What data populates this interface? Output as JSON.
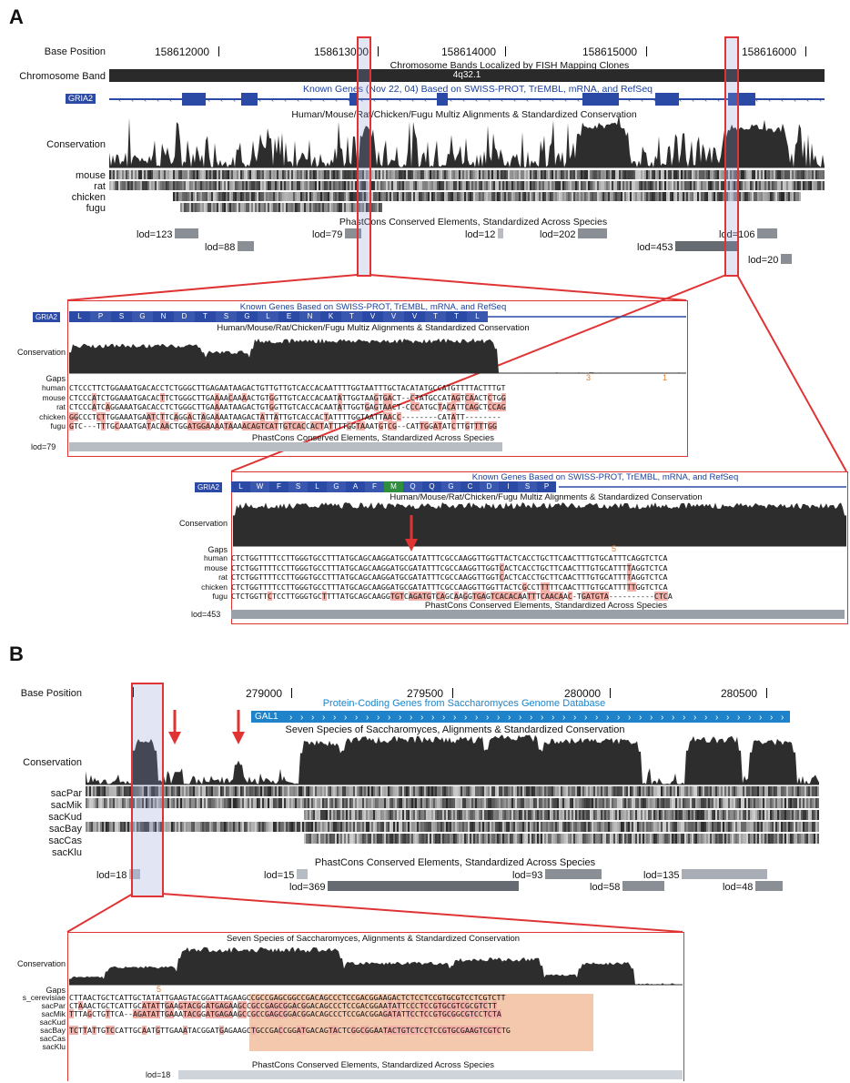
{
  "panel_a": {
    "letter": "A",
    "base_position_label": "Base Position",
    "positions": [
      "158612000",
      "158613000",
      "158614000",
      "158615000",
      "158616000"
    ],
    "chromosome_band_label": "Chromosome Band",
    "chromosome_band_title": "Chromosome Bands Localized by FISH Mapping Clones",
    "band_name": "4q32.1",
    "gene_name": "GRIA2",
    "known_genes_title": "Known Genes (Nov 22, 04) Based on SWISS-PROT, TrEMBL, mRNA, and RefSeq",
    "multiz_title": "Human/Mouse/Rat/Chicken/Fugu Multiz Alignments & Standardized Conservation",
    "conservation_label": "Conservation",
    "species": [
      "mouse",
      "rat",
      "chicken",
      "fugu"
    ],
    "phastcons_title": "PhastCons Conserved Elements, Standardized Across Species",
    "lods": [
      "lod=123",
      "lod=88",
      "lod=79",
      "lod=12",
      "lod=202",
      "lod=453",
      "lod=106",
      "lod=20"
    ]
  },
  "zoom1": {
    "gene_name": "GRIA2",
    "known_genes_title": "Known Genes Based on SWISS-PROT, TrEMBL, mRNA, and RefSeq",
    "aa": [
      "L",
      "P",
      "S",
      "G",
      "N",
      "D",
      "T",
      "S",
      "G",
      "L",
      "E",
      "N",
      "K",
      "T",
      "V",
      "V",
      "V",
      "T",
      "T",
      "L"
    ],
    "multiz_title": "Human/Mouse/Rat/Chicken/Fugu Multiz Alignments & Standardized Conservation",
    "conservation_label": "Conservation",
    "gaps_label": "Gaps",
    "gap_marks": [
      "3",
      "1"
    ],
    "rows": [
      {
        "name": "human",
        "seq": "CTCCCTTCTGGAAATGACACCTCTGGGCTTGAGAATAAGACTGTTGTTGTCACCACAATTTTGGTAATTTGCTACATATGCCATGTTTTACTTTGT"
      },
      {
        "name": "mouse",
        "seq": "CTCCCATCTGGAAATGACACTTCTGGGCTTGAAAACAAAACTGTGGTTGTCACCACAATATTGGTAAGTGACT--CTATGCCATAGTCAACTCTGG"
      },
      {
        "name": "rat",
        "seq": "CTCCCATCAGGAAATGACACCTCTGGGCTTGAAAATAAGACTGTGGTTGTCACCACAATATTGGTGAGTAACT-CCCATGCTACATTCAGCTCCAG"
      },
      {
        "name": "chicken",
        "seq": "GGCCCTCTTGGAAATGAATCTTCAGGACTAGAAAATAAGACTATTATTGTCACCACTATTTTGGTAATTAACC--------CATATT--------"
      },
      {
        "name": "fugu",
        "seq": "GTC---TTTGCAAATGATACAACTGGATGGAAAATAAAACAGTCATTGTCACCACTATTTTGGTAAATGTCG--CATTGGATATCTTGTTTTGG"
      }
    ],
    "phastcons_title": "PhastCons Conserved Elements, Standardized Across Species",
    "lod": "lod=79"
  },
  "zoom2": {
    "gene_name": "GRIA2",
    "known_genes_title": "Known Genes Based on SWISS-PROT, TrEMBL, mRNA, and RefSeq",
    "aa": [
      "L",
      "W",
      "F",
      "S",
      "L",
      "G",
      "A",
      "F",
      "M",
      "Q",
      "Q",
      "G",
      "C",
      "D",
      "I",
      "S",
      "P"
    ],
    "multiz_title": "Human/Mouse/Rat/Chicken/Fugu Multiz Alignments & Standardized Conservation",
    "conservation_label": "Conservation",
    "gaps_label": "Gaps",
    "gap_marks": [
      "5"
    ],
    "rows": [
      {
        "name": "human",
        "seq": "CTCTGGTTTTCCTTGGGTGCCTTTATGCAGCAAGGATGCGATATTTCGCCAAGGTTGGTTACTCACCTGCTTCAACTTTGTGCATTTCAGGTCTCA"
      },
      {
        "name": "mouse",
        "seq": "CTCTGGTTTTCCTTGGGTGCCTTTATGCAGCAAGGATGCGATATTTCGCCAAGGTTGGTCACTCACCTGCTTCAACTTTGTGCATTTTAGGTCTCA"
      },
      {
        "name": "rat",
        "seq": "CTCTGGTTTTCCTTGGGTGCCTTTATGCAGCAAGGATGCGATATTTCGCCAAGGTTGGTCACTCACCTGCTTCAACTTTGTGCATTTTAGGTCTCA"
      },
      {
        "name": "chicken",
        "seq": "CTCTGGTTTTCCTTGGGTGCCTTTATGCAGCAAGGATGCGATATTTCGCCAAGGTTGGTTACTCGCCTTTTTCAACTTTGTGCATTTTTGGTCTCA"
      },
      {
        "name": "fugu",
        "seq": "CTCTGGTTCTCCTTGGGTGCTTTTATGCAGCAAGGTGTCAGATGTCAGCAAGGTGAGTCACACAATTTCAACAAC-TGATGTA----------CTCA"
      }
    ],
    "phastcons_title": "PhastCons Conserved Elements, Standardized Across Species",
    "lod": "lod=453"
  },
  "panel_b": {
    "letter": "B",
    "base_position_label": "Base Position",
    "positions": [
      "279000",
      "279500",
      "280000",
      "280500"
    ],
    "gene_name": "GAL1",
    "gene_title": "Protein-Coding Genes from Saccharomyces Genome Database",
    "multiz_title": "Seven Species of Saccharomyces, Alignments & Standardized Conservation",
    "conservation_label": "Conservation",
    "species": [
      "sacPar",
      "sacMik",
      "sacKud",
      "sacBay",
      "sacCas",
      "sacKlu"
    ],
    "phastcons_title": "PhastCons Conserved Elements, Standardized Across Species",
    "lods": [
      "lod=18",
      "lod=15",
      "lod=369",
      "lod=93",
      "lod=58",
      "lod=135",
      "lod=48"
    ]
  },
  "zoom3": {
    "multiz_title": "Seven Species of Saccharomyces, Alignments & Standardized Conservation",
    "conservation_label": "Conservation",
    "gaps_label": "Gaps",
    "gap_marks": [
      "5"
    ],
    "rows": [
      {
        "name": "s_cerevisiae",
        "seq": "CTTAACTGCTCATTGCTATATTGAAGTACGGATTAGAAGCCGCCGAGCGGCCGACAGCCCTCCGACGGAAGACTCTCCTCCGTGCGTCCTCGTCTT"
      },
      {
        "name": "sacPar",
        "seq": "CTAAACTGCTCATTGCATATTGAAGTACGGATGAGAAGCCGCCGAGCGGACGGACAGCCCTCCGACGGAATATTCCCTCCGTGCGTCGCGTCTT"
      },
      {
        "name": "sacMik",
        "seq": "TTTAGCTGTTCA--AGATATTGAAATACGGATGAGAAGCCGCCGAGCGGACGGACAGCCCTCCGACGGAGATATTCCTCCGTGCGGCGTCCTCTA"
      },
      {
        "name": "sacKud",
        "seq": ""
      },
      {
        "name": "sacBay",
        "seq": "TCTTATTGTCCATTGCAATGTTGAAATACGGATGAGAAGCTGCCGACCGGATGACAGTACTCGGCGGAATACTGTCTCCTCCGTGCGAAGTCGTCTG"
      },
      {
        "name": "sacCas",
        "seq": ""
      },
      {
        "name": "sacKlu",
        "seq": ""
      }
    ],
    "phastcons_title": "PhastCons Conserved Elements, Standardized Across Species",
    "lod": "lod=18"
  }
}
